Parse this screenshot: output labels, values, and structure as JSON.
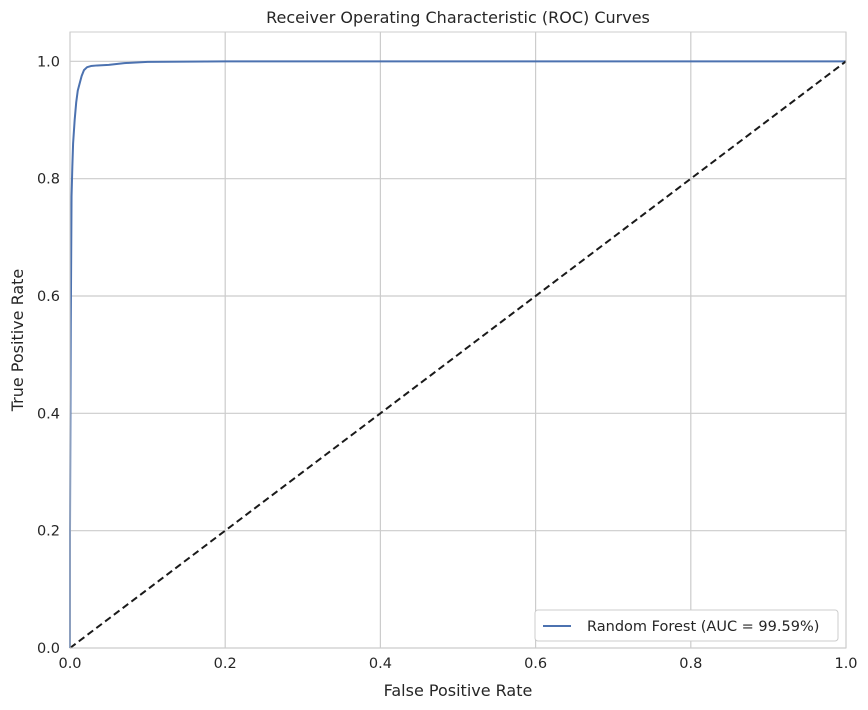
{
  "chart_data": {
    "type": "line",
    "title": "Receiver Operating Characteristic (ROC) Curves",
    "xlabel": "False Positive Rate",
    "ylabel": "True Positive Rate",
    "xlim": [
      0.0,
      1.0
    ],
    "ylim": [
      0.0,
      1.05
    ],
    "xticks": [
      0.0,
      0.2,
      0.4,
      0.6,
      0.8,
      1.0
    ],
    "yticks": [
      0.0,
      0.2,
      0.4,
      0.6,
      0.8,
      1.0
    ],
    "xtick_labels": [
      "0.0",
      "0.2",
      "0.4",
      "0.6",
      "0.8",
      "1.0"
    ],
    "ytick_labels": [
      "0.0",
      "0.2",
      "0.4",
      "0.6",
      "0.8",
      "1.0"
    ],
    "grid": true,
    "legend_position": "bottom-right",
    "series": [
      {
        "name": "Random Forest (AUC = 99.59%)",
        "color": "#4c72b0",
        "style": "solid",
        "x": [
          0.0,
          0.0,
          0.001,
          0.002,
          0.003,
          0.004,
          0.005,
          0.006,
          0.008,
          0.01,
          0.012,
          0.015,
          0.018,
          0.022,
          0.027,
          0.035,
          0.05,
          0.07,
          0.1,
          0.15,
          0.2,
          0.4,
          0.6,
          0.8,
          1.0
        ],
        "y": [
          0.0,
          0.2,
          0.55,
          0.77,
          0.82,
          0.86,
          0.88,
          0.9,
          0.93,
          0.95,
          0.96,
          0.975,
          0.985,
          0.99,
          0.992,
          0.993,
          0.994,
          0.997,
          0.999,
          0.9995,
          1.0,
          1.0,
          1.0,
          1.0,
          1.0
        ]
      },
      {
        "color": "#1a1a1a",
        "style": "dashed",
        "x": [
          0.0,
          1.0
        ],
        "y": [
          0.0,
          1.0
        ]
      }
    ]
  }
}
